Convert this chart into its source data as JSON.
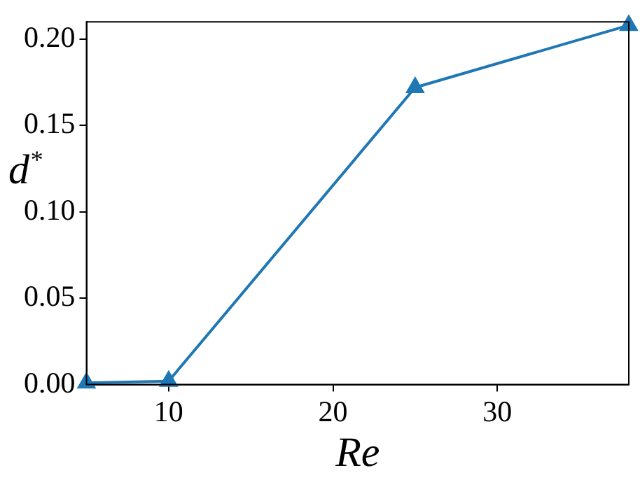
{
  "chart_data": {
    "type": "line",
    "xlabel": "Re",
    "ylabel": "d$^{*}$",
    "x": [
      5,
      10,
      25,
      38
    ],
    "series": [
      {
        "color": "#1f77b4",
        "values": [
          0.001,
          0.002,
          0.172,
          0.208
        ]
      }
    ],
    "xlim": [
      5,
      38
    ],
    "xticks": [
      10,
      20,
      30
    ],
    "ylim": [
      0,
      0.21
    ],
    "yticks": [
      {
        "value": 0,
        "label": "0.00"
      },
      {
        "value": 0.05,
        "label": "0.05"
      },
      {
        "value": 0.1,
        "label": "0.10"
      },
      {
        "value": 0.15,
        "label": "0.15"
      },
      {
        "value": 0.2,
        "label": "0.20"
      }
    ],
    "grid": false,
    "legend": false,
    "marker": "triangle",
    "line_style": "solid"
  }
}
